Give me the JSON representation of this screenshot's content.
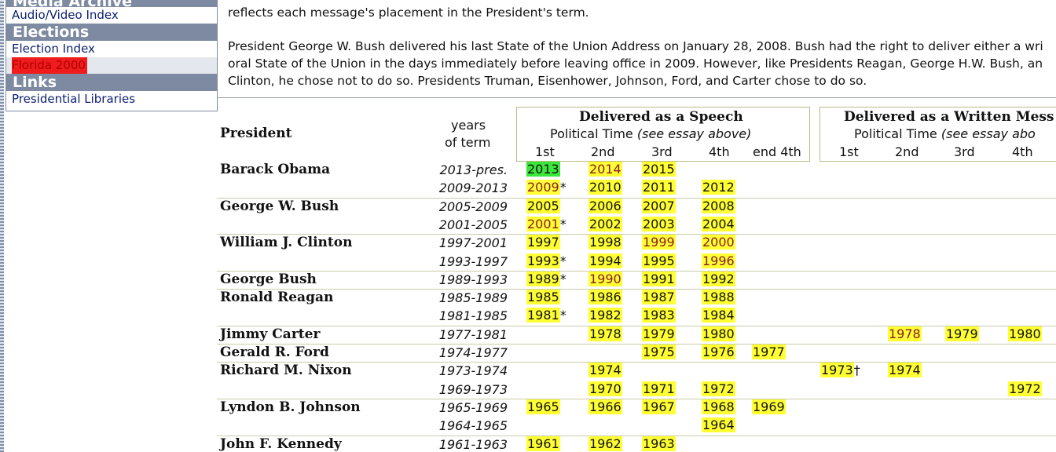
{
  "sidebar": {
    "cut_header": "Media Archive",
    "links1": [
      "Audio/Video Index"
    ],
    "elections_header": "Elections",
    "election_links": [
      "Election Index",
      "Florida 2000"
    ],
    "links_header": "Links",
    "links2": [
      "Presidential Libraries"
    ]
  },
  "intro": {
    "line0": "reflects each message's placement in the President's term.",
    "p2": [
      "President George W. Bush delivered his last State of the Union Address on January 28, 2008. Bush had the right to deliver either a wri",
      "oral State of the Union in the days immediately before leaving office in 2009. However, like Presidents Reagan, George H.W. Bush, an",
      "Clinton, he chose not to do so. Presidents Truman, Eisenhower, Johnson, Ford, and Carter chose to do so."
    ]
  },
  "table": {
    "president_header": "President",
    "years_header": [
      "years",
      "of term"
    ],
    "speech": {
      "title": "Delivered as a Speech",
      "sub": "Political Time ",
      "sub_em": "(see essay above)",
      "cols": [
        "1st",
        "2nd",
        "3rd",
        "4th",
        "end 4th"
      ]
    },
    "written": {
      "title": "Delivered as a Written Mess",
      "sub": "Political Time ",
      "sub_em": "(see essay abo",
      "cols": [
        "1st",
        "2nd",
        "3rd",
        "4th"
      ]
    },
    "colors": {
      "highlight": "#ffff33",
      "current": "#39e639",
      "maroon": "#8b1a2a"
    }
  },
  "rows": [
    {
      "name": "Barack Obama",
      "term": "2013-pres.",
      "s": [
        [
          "2013",
          "g"
        ],
        [
          "2014",
          "m"
        ],
        [
          "2015",
          ""
        ],
        null,
        null
      ],
      "w": [
        null,
        null,
        null,
        null
      ]
    },
    {
      "name": "",
      "term": "2009-2013",
      "s": [
        [
          "2009",
          "m",
          "*"
        ],
        [
          "2010",
          ""
        ],
        [
          "2011",
          ""
        ],
        [
          "2012",
          ""
        ],
        null
      ],
      "w": [
        null,
        null,
        null,
        null
      ]
    },
    {
      "name": "George W. Bush",
      "term": "2005-2009",
      "s": [
        [
          "2005",
          ""
        ],
        [
          "2006",
          ""
        ],
        [
          "2007",
          ""
        ],
        [
          "2008",
          ""
        ],
        null
      ],
      "w": [
        null,
        null,
        null,
        null
      ]
    },
    {
      "name": "",
      "term": "2001-2005",
      "s": [
        [
          "2001",
          "m",
          "*"
        ],
        [
          "2002",
          ""
        ],
        [
          "2003",
          ""
        ],
        [
          "2004",
          ""
        ],
        null
      ],
      "w": [
        null,
        null,
        null,
        null
      ]
    },
    {
      "name": "William J. Clinton",
      "term": "1997-2001",
      "s": [
        [
          "1997",
          ""
        ],
        [
          "1998",
          ""
        ],
        [
          "1999",
          "m"
        ],
        [
          "2000",
          "m"
        ],
        null
      ],
      "w": [
        null,
        null,
        null,
        null
      ]
    },
    {
      "name": "",
      "term": "1993-1997",
      "s": [
        [
          "1993",
          "",
          "*"
        ],
        [
          "1994",
          ""
        ],
        [
          "1995",
          ""
        ],
        [
          "1996",
          "m"
        ],
        null
      ],
      "w": [
        null,
        null,
        null,
        null
      ]
    },
    {
      "name": "George Bush",
      "term": "1989-1993",
      "s": [
        [
          "1989",
          "",
          "*"
        ],
        [
          "1990",
          "m"
        ],
        [
          "1991",
          ""
        ],
        [
          "1992",
          ""
        ],
        null
      ],
      "w": [
        null,
        null,
        null,
        null
      ]
    },
    {
      "name": "Ronald Reagan",
      "term": "1985-1989",
      "s": [
        [
          "1985",
          ""
        ],
        [
          "1986",
          ""
        ],
        [
          "1987",
          ""
        ],
        [
          "1988",
          ""
        ],
        null
      ],
      "w": [
        null,
        null,
        null,
        null
      ]
    },
    {
      "name": "",
      "term": "1981-1985",
      "s": [
        [
          "1981",
          "",
          "*"
        ],
        [
          "1982",
          ""
        ],
        [
          "1983",
          ""
        ],
        [
          "1984",
          ""
        ],
        null
      ],
      "w": [
        null,
        null,
        null,
        null
      ]
    },
    {
      "name": "Jimmy Carter",
      "term": "1977-1981",
      "s": [
        null,
        [
          "1978",
          ""
        ],
        [
          "1979",
          ""
        ],
        [
          "1980",
          ""
        ],
        null
      ],
      "w": [
        null,
        [
          "1978",
          "m"
        ],
        [
          "1979",
          ""
        ],
        [
          "1980",
          ""
        ]
      ]
    },
    {
      "name": "Gerald R. Ford",
      "term": "1974-1977",
      "s": [
        null,
        null,
        [
          "1975",
          ""
        ],
        [
          "1976",
          ""
        ],
        [
          "1977",
          ""
        ]
      ],
      "w": [
        null,
        null,
        null,
        null
      ]
    },
    {
      "name": "Richard M. Nixon",
      "term": "1973-1974",
      "s": [
        null,
        [
          "1974",
          ""
        ],
        null,
        null,
        null
      ],
      "w": [
        [
          "1973",
          "",
          "†"
        ],
        [
          "1974",
          ""
        ],
        null,
        null
      ]
    },
    {
      "name": "",
      "term": "1969-1973",
      "s": [
        null,
        [
          "1970",
          ""
        ],
        [
          "1971",
          ""
        ],
        [
          "1972",
          ""
        ],
        null
      ],
      "w": [
        null,
        null,
        null,
        [
          "1972",
          ""
        ]
      ]
    },
    {
      "name": "Lyndon B. Johnson",
      "term": "1965-1969",
      "s": [
        [
          "1965",
          ""
        ],
        [
          "1966",
          ""
        ],
        [
          "1967",
          ""
        ],
        [
          "1968",
          ""
        ],
        [
          "1969",
          ""
        ]
      ],
      "w": [
        null,
        null,
        null,
        null
      ]
    },
    {
      "name": "",
      "term": "1964-1965",
      "s": [
        null,
        null,
        null,
        [
          "1964",
          ""
        ],
        null
      ],
      "w": [
        null,
        null,
        null,
        null
      ]
    },
    {
      "name": "John F. Kennedy",
      "term": "1961-1963",
      "s": [
        [
          "1961",
          ""
        ],
        [
          "1962",
          ""
        ],
        [
          "1963",
          ""
        ],
        null,
        null
      ],
      "w": [
        null,
        null,
        null,
        null
      ]
    }
  ]
}
